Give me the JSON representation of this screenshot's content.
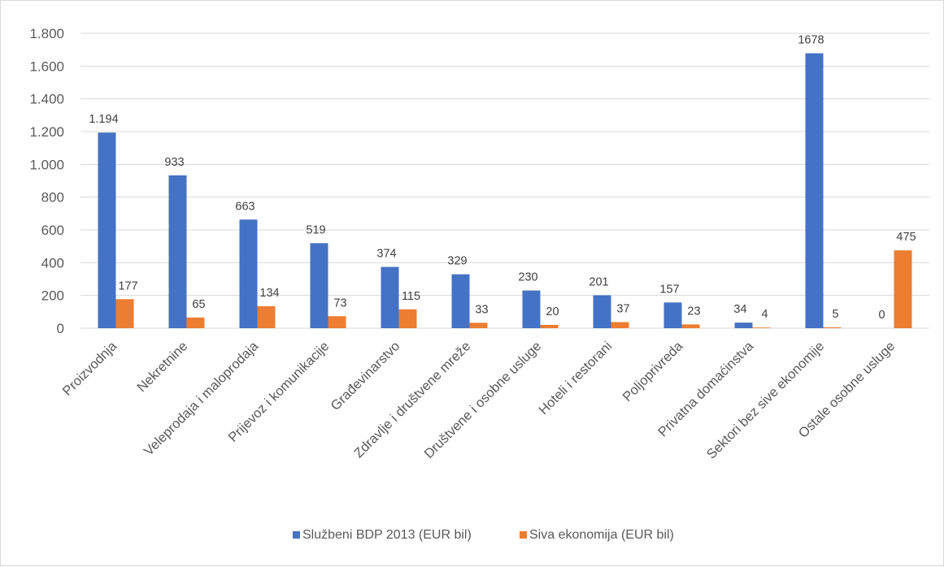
{
  "chart_data": {
    "type": "bar",
    "title": "",
    "xlabel": "",
    "ylabel": "",
    "ylim": [
      0,
      1800
    ],
    "yticks": [
      0,
      200,
      400,
      600,
      800,
      1000,
      1200,
      1400,
      1600,
      1800
    ],
    "ytick_labels": [
      "0",
      "200",
      "400",
      "600",
      "800",
      "1.000",
      "1.200",
      "1.400",
      "1.600",
      "1.800"
    ],
    "grid": true,
    "legend_position": "bottom",
    "categories": [
      "Proizvodnja",
      "Nekretnine",
      "Veleprodaja i maloprodaja",
      "Prijevoz i komunikacije",
      "Građevinarstvo",
      "Zdravlje i društvene mreže",
      "Društvene i osobne usluge",
      "Hoteli i restorani",
      "Poljoprivreda",
      "Privatna domaćinstva",
      "Sektori bez sive ekonomije",
      "Ostale osobne usluge"
    ],
    "series": [
      {
        "name": "Službeni BDP 2013 (EUR bil)",
        "color": "#4472c4",
        "values": [
          1194,
          933,
          663,
          519,
          374,
          329,
          230,
          201,
          157,
          34,
          1678,
          0
        ],
        "labels": [
          "1.194",
          "933",
          "663",
          "519",
          "374",
          "329",
          "230",
          "201",
          "157",
          "34",
          "1678",
          "0"
        ]
      },
      {
        "name": "Siva ekonomija (EUR bil)",
        "color": "#ed7d31",
        "values": [
          177,
          65,
          134,
          73,
          115,
          33,
          20,
          37,
          23,
          4,
          5,
          475
        ],
        "labels": [
          "177",
          "65",
          "134",
          "73",
          "115",
          "33",
          "20",
          "37",
          "23",
          "4",
          "5",
          "475"
        ]
      }
    ]
  }
}
